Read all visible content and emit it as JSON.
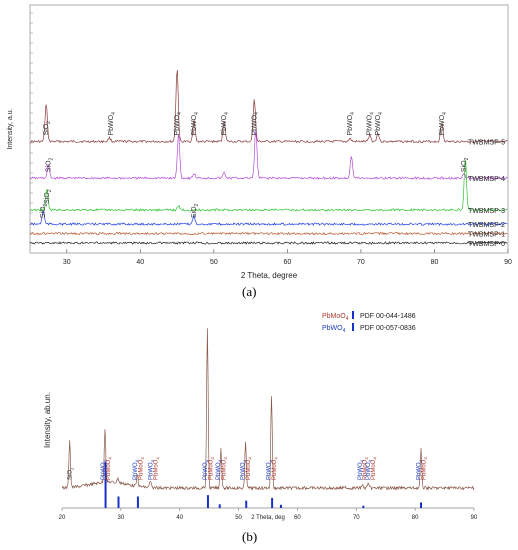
{
  "figure": {
    "panel_a_label": "(a)",
    "panel_b_label": "(b)"
  },
  "chart_data": [
    {
      "type": "line",
      "panel": "(a)",
      "xlabel": "2 Theta, degree",
      "ylabel": "Intensity, a.u.",
      "xlim": [
        25,
        90
      ],
      "x_ticks": [
        30,
        40,
        50,
        60,
        70,
        80,
        90
      ],
      "grid": false,
      "series": [
        {
          "name": "TWBMSP-5",
          "color": "#8b3a3a",
          "baseline": 0.86,
          "peaks": [
            [
              27.2,
              1.0
            ],
            [
              35.8,
              0.1
            ],
            [
              45.0,
              1.95
            ],
            [
              47.3,
              0.55
            ],
            [
              51.4,
              0.55
            ],
            [
              55.5,
              1.15
            ],
            [
              68.5,
              0.08
            ],
            [
              71.2,
              0.18
            ],
            [
              72.3,
              0.22
            ],
            [
              81.0,
              0.5
            ]
          ]
        },
        {
          "name": "TWBMSP-4",
          "color": "#b44cd6",
          "baseline": 0.55,
          "peaks": [
            [
              27.5,
              0.35
            ],
            [
              45.2,
              1.2
            ],
            [
              47.3,
              0.12
            ],
            [
              51.4,
              0.15
            ],
            [
              55.7,
              1.3
            ],
            [
              68.7,
              0.6
            ],
            [
              84.0,
              0.12
            ]
          ]
        },
        {
          "name": "TWBMSP-3",
          "color": "#2fc42f",
          "baseline": 0.28,
          "peaks": [
            [
              27.3,
              0.55
            ],
            [
              45.2,
              0.1
            ],
            [
              84.2,
              1.4
            ]
          ]
        },
        {
          "name": "TWBMSP-2",
          "color": "#2140e0",
          "baseline": 0.16,
          "peaks": [
            [
              26.8,
              0.35
            ],
            [
              47.3,
              0.22
            ]
          ]
        },
        {
          "name": "TWBMSP-1",
          "color": "#b85a2e",
          "baseline": 0.08,
          "peaks": []
        },
        {
          "name": "TWBMSP-0",
          "color": "#222222",
          "baseline": 0.0,
          "peaks": []
        }
      ],
      "annotations": [
        {
          "text": "SiO2",
          "x": 27.2,
          "series": "TWBMSP-5"
        },
        {
          "text": "PbWO4",
          "x": 36.0,
          "series": "TWBMSP-5"
        },
        {
          "text": "PbWO4",
          "x": 45.0,
          "series": "TWBMSP-5"
        },
        {
          "text": "PbWO4",
          "x": 47.3,
          "series": "TWBMSP-5"
        },
        {
          "text": "PbWO4",
          "x": 51.4,
          "series": "TWBMSP-5"
        },
        {
          "text": "PbWO4",
          "x": 55.5,
          "series": "TWBMSP-5"
        },
        {
          "text": "PbWO4",
          "x": 68.5,
          "series": "TWBMSP-5"
        },
        {
          "text": "PbWO4",
          "x": 71.2,
          "series": "TWBMSP-5"
        },
        {
          "text": "PbWO4",
          "x": 72.3,
          "series": "TWBMSP-5"
        },
        {
          "text": "PbWO4",
          "x": 81.0,
          "series": "TWBMSP-5"
        },
        {
          "text": "SiO2",
          "x": 27.5,
          "series": "TWBMSP-4"
        },
        {
          "text": "SiO2",
          "x": 84.0,
          "series": "TWBMSP-4"
        },
        {
          "text": "SiO2",
          "x": 27.3,
          "series": "TWBMSP-3"
        },
        {
          "text": "SiO2",
          "x": 26.8,
          "series": "TWBMSP-2"
        },
        {
          "text": "SiO2",
          "x": 47.3,
          "series": "TWBMSP-2"
        }
      ]
    },
    {
      "type": "line",
      "panel": "(b)",
      "xlabel": "2 Theta, deg",
      "ylabel": "Intensity, ab.un.",
      "xlim": [
        20,
        90
      ],
      "x_ticks": [
        20,
        30,
        40,
        50,
        60,
        70,
        80,
        90
      ],
      "grid": false,
      "legend": {
        "placement": "top-right",
        "entries": [
          {
            "label": "PbMoO4",
            "pdf": "PDF 00-044-1486",
            "color": "#b03a2e"
          },
          {
            "label": "PbWO4",
            "pdf": "PDF 00-057-0836",
            "color": "#2040c0"
          }
        ]
      },
      "series": [
        {
          "name": "pattern",
          "color": "#8a5a4a",
          "peaks": [
            [
              21.3,
              0.3
            ],
            [
              27.3,
              0.34
            ],
            [
              29.5,
              0.03
            ],
            [
              32.8,
              0.07
            ],
            [
              35.0,
              0.04
            ],
            [
              44.7,
              1.0
            ],
            [
              47.0,
              0.25
            ],
            [
              51.2,
              0.29
            ],
            [
              55.6,
              0.58
            ],
            [
              71.0,
              0.02
            ],
            [
              72.0,
              0.03
            ],
            [
              81.0,
              0.24
            ]
          ]
        }
      ],
      "reference_sticks": [
        {
          "x": 27.4,
          "h": 1.0
        },
        {
          "x": 29.6,
          "h": 0.25
        },
        {
          "x": 32.9,
          "h": 0.25
        },
        {
          "x": 44.8,
          "h": 0.28
        },
        {
          "x": 46.8,
          "h": 0.08
        },
        {
          "x": 51.3,
          "h": 0.16
        },
        {
          "x": 55.7,
          "h": 0.22
        },
        {
          "x": 57.2,
          "h": 0.07
        },
        {
          "x": 71.2,
          "h": 0.05
        },
        {
          "x": 81.0,
          "h": 0.12
        }
      ],
      "annotations": [
        {
          "text": "SiO2",
          "x": 21.3,
          "color": "#333333"
        },
        {
          "text": "PbWO4",
          "x": 27.0,
          "color": "#2040c0"
        },
        {
          "text": "PbMoO4",
          "x": 27.8,
          "color": "#b03a2e"
        },
        {
          "text": "PbWO4",
          "x": 32.4,
          "color": "#2040c0"
        },
        {
          "text": "PbMoO4",
          "x": 33.3,
          "color": "#b03a2e"
        },
        {
          "text": "PbWO4",
          "x": 35.0,
          "color": "#2040c0"
        },
        {
          "text": "PbMoO4",
          "x": 35.9,
          "color": "#b03a2e"
        },
        {
          "text": "PbWO4",
          "x": 44.3,
          "color": "#2040c0"
        },
        {
          "text": "PbMoO4",
          "x": 45.2,
          "color": "#b03a2e"
        },
        {
          "text": "PbWO4",
          "x": 46.5,
          "color": "#2040c0"
        },
        {
          "text": "PbMoO4",
          "x": 47.4,
          "color": "#b03a2e"
        },
        {
          "text": "PbWO4",
          "x": 50.7,
          "color": "#2040c0"
        },
        {
          "text": "PbMoO4",
          "x": 51.6,
          "color": "#b03a2e"
        },
        {
          "text": "PbWO4",
          "x": 55.1,
          "color": "#2040c0"
        },
        {
          "text": "PbMoO4",
          "x": 56.0,
          "color": "#b03a2e"
        },
        {
          "text": "PbWO4",
          "x": 70.6,
          "color": "#2040c0"
        },
        {
          "text": "PbMoO4",
          "x": 71.4,
          "color": "#b03a2e"
        },
        {
          "text": "PbWO4",
          "x": 72.0,
          "color": "#2040c0"
        },
        {
          "text": "PbMoO4",
          "x": 72.8,
          "color": "#b03a2e"
        },
        {
          "text": "PbWO4",
          "x": 80.6,
          "color": "#2040c0"
        },
        {
          "text": "PbMoO4",
          "x": 81.4,
          "color": "#b03a2e"
        }
      ]
    }
  ]
}
